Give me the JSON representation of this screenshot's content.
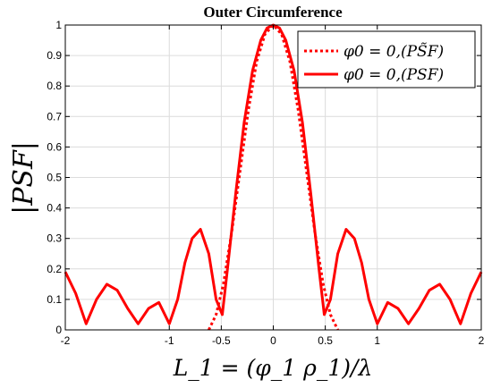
{
  "chart_data": {
    "type": "line",
    "title": "Outer Circumference",
    "xlabel": "L_1 = (φ_1 ρ_1)/λ",
    "ylabel": "|PSF|",
    "xlim": [
      -2,
      2
    ],
    "ylim": [
      0,
      1
    ],
    "grid": true,
    "legend_position": "top-right",
    "x_ticks": [
      -2,
      -1,
      -0.5,
      0,
      0.5,
      1,
      2
    ],
    "x_tick_labels": [
      "-2",
      "-1",
      "-0.5",
      "0",
      "0.5",
      "1",
      "2"
    ],
    "y_ticks": [
      0,
      0.1,
      0.2,
      0.3,
      0.4,
      0.5,
      0.6,
      0.7,
      0.8,
      0.9,
      1
    ],
    "y_tick_labels": [
      "0",
      "0.1",
      "0.2",
      "0.3",
      "0.4",
      "0.5",
      "0.6",
      "0.7",
      "0.8",
      "0.9",
      "1"
    ],
    "series": [
      {
        "name": "φ0 = 0,(PS̃F)",
        "style": "dotted",
        "color": "#ff0000",
        "x": [
          -0.62,
          -0.55,
          -0.48,
          -0.4,
          -0.32,
          -0.24,
          -0.16,
          -0.08,
          0,
          0.08,
          0.16,
          0.24,
          0.32,
          0.4,
          0.48,
          0.55,
          0.62
        ],
        "y": [
          0.0,
          0.05,
          0.15,
          0.32,
          0.52,
          0.72,
          0.88,
          0.97,
          1.0,
          0.97,
          0.88,
          0.72,
          0.52,
          0.32,
          0.15,
          0.05,
          0.0
        ]
      },
      {
        "name": "φ0 = 0,(PSF)",
        "style": "solid",
        "color": "#ff0000",
        "x": [
          -2.0,
          -1.9,
          -1.8,
          -1.7,
          -1.6,
          -1.5,
          -1.4,
          -1.3,
          -1.2,
          -1.1,
          -1.0,
          -0.92,
          -0.85,
          -0.78,
          -0.7,
          -0.62,
          -0.55,
          -0.49,
          -0.44,
          -0.36,
          -0.28,
          -0.2,
          -0.12,
          -0.06,
          0,
          0.06,
          0.12,
          0.2,
          0.28,
          0.36,
          0.44,
          0.49,
          0.55,
          0.62,
          0.7,
          0.78,
          0.85,
          0.92,
          1.0,
          1.1,
          1.2,
          1.3,
          1.4,
          1.5,
          1.6,
          1.7,
          1.8,
          1.9,
          2.0
        ],
        "y": [
          0.19,
          0.12,
          0.02,
          0.1,
          0.15,
          0.13,
          0.07,
          0.02,
          0.07,
          0.09,
          0.02,
          0.1,
          0.22,
          0.3,
          0.33,
          0.25,
          0.1,
          0.05,
          0.2,
          0.45,
          0.68,
          0.85,
          0.95,
          0.99,
          1.0,
          0.99,
          0.95,
          0.85,
          0.68,
          0.45,
          0.2,
          0.05,
          0.1,
          0.25,
          0.33,
          0.3,
          0.22,
          0.1,
          0.02,
          0.09,
          0.07,
          0.02,
          0.07,
          0.13,
          0.15,
          0.1,
          0.02,
          0.12,
          0.19
        ]
      }
    ]
  }
}
